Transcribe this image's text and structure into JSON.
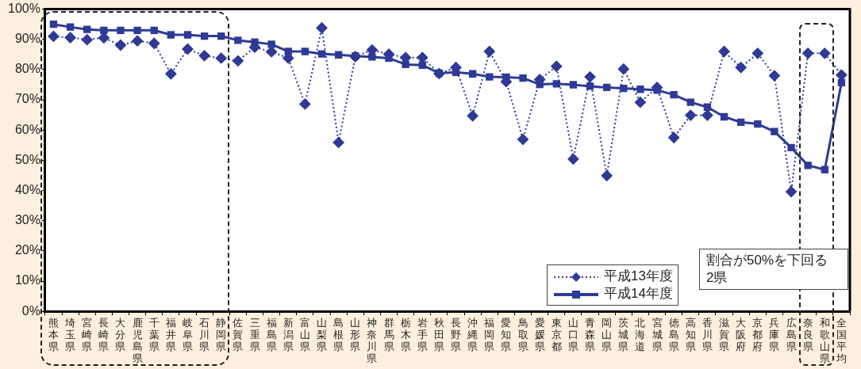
{
  "chart_data": {
    "type": "line",
    "categories": [
      "熊本県",
      "埼玉県",
      "宮崎県",
      "長崎県",
      "大分県",
      "鹿児島県",
      "千葉県",
      "福井県",
      "岐阜県",
      "石川県",
      "静岡県",
      "佐賀県",
      "三重県",
      "福島県",
      "新潟県",
      "富山県",
      "山梨県",
      "島根県",
      "山形県",
      "神奈川県",
      "群馬県",
      "栃木県",
      "岩手県",
      "秋田県",
      "長野県",
      "沖縄県",
      "福岡県",
      "愛知県",
      "鳥取県",
      "愛媛県",
      "東京都",
      "山口県",
      "青森県",
      "岡山県",
      "茨城県",
      "北海道",
      "宮城県",
      "徳島県",
      "高知県",
      "香川県",
      "滋賀県",
      "大阪府",
      "京都府",
      "兵庫県",
      "広島県",
      "奈良県",
      "和歌山県",
      "全国平均"
    ],
    "series": [
      {
        "name": "平成13年度",
        "color": "#2e3a96",
        "marker": "diamond",
        "line_style": "dotted",
        "values": [
          91.0,
          90.6,
          89.9,
          90.5,
          88.1,
          89.5,
          88.7,
          78.6,
          86.8,
          84.6,
          83.8,
          82.9,
          87.4,
          85.9,
          83.8,
          68.6,
          93.8,
          55.9,
          84.3,
          86.5,
          85.1,
          84.0,
          84.0,
          78.7,
          80.7,
          64.7,
          86.0,
          76.0,
          56.9,
          76.7,
          81.1,
          50.4,
          77.6,
          44.9,
          80.2,
          69.2,
          74.1,
          57.5,
          64.9,
          64.9,
          86.0,
          80.7,
          85.4,
          78.0,
          39.6,
          85.4,
          85.4,
          78.2
        ]
      },
      {
        "name": "平成14年度",
        "color": "#2e3a96",
        "marker": "square",
        "line_style": "solid",
        "values": [
          95.0,
          94.1,
          93.3,
          93.0,
          93.0,
          93.0,
          93.0,
          91.5,
          91.5,
          91.1,
          91.1,
          89.7,
          89.1,
          88.4,
          86.0,
          86.0,
          85.2,
          84.9,
          84.5,
          84.2,
          83.8,
          81.7,
          81.5,
          78.8,
          79.1,
          78.6,
          77.6,
          77.5,
          77.2,
          75.1,
          75.3,
          75.0,
          74.5,
          74.1,
          73.8,
          73.5,
          73.2,
          71.7,
          69.2,
          67.6,
          64.4,
          62.6,
          62.0,
          59.5,
          54.2,
          48.3,
          46.9,
          75.7
        ]
      }
    ],
    "ylim": [
      0,
      100
    ],
    "yticks": [
      {
        "value": 0,
        "label": "0%"
      },
      {
        "value": 10,
        "label": "10%"
      },
      {
        "value": 20,
        "label": "20%"
      },
      {
        "value": 30,
        "label": "30%"
      },
      {
        "value": 40,
        "label": "40%"
      },
      {
        "value": 50,
        "label": "50%"
      },
      {
        "value": 60,
        "label": "60%"
      },
      {
        "value": 70,
        "label": "70%"
      },
      {
        "value": 80,
        "label": "80%"
      },
      {
        "value": 90,
        "label": "90%"
      },
      {
        "value": 100,
        "label": "100%"
      }
    ],
    "legend": "bottom right",
    "annotations": [
      "割合が50%を下回る　2県"
    ]
  }
}
